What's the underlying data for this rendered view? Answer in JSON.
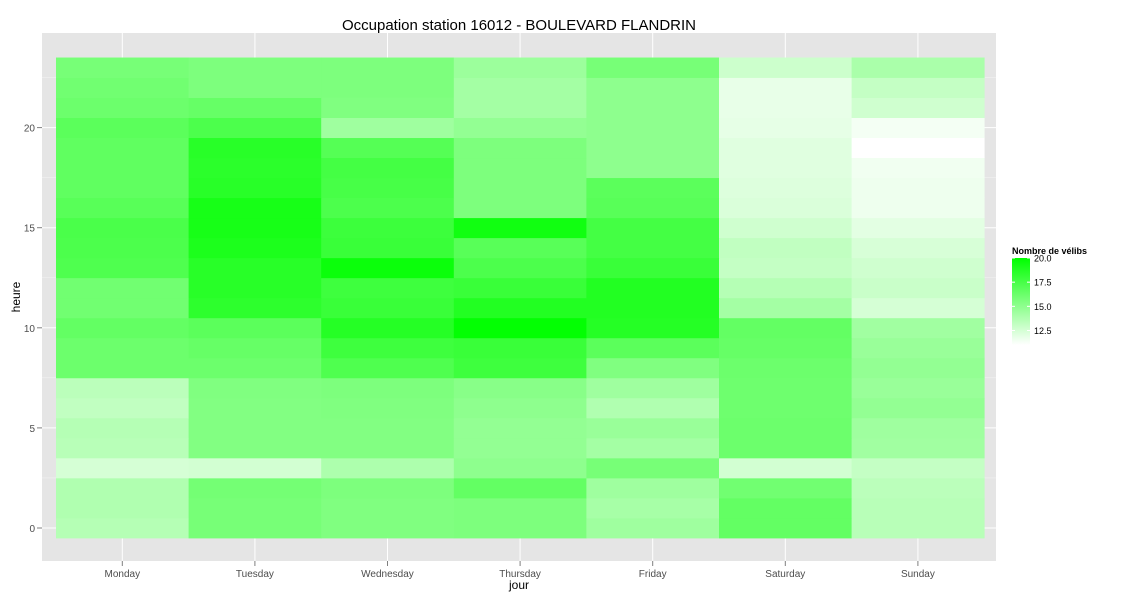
{
  "chart_data": {
    "type": "heatmap",
    "title": "Occupation station 16012 - BOULEVARD FLANDRIN",
    "xlabel": "jour",
    "ylabel": "heure",
    "categories": [
      "Monday",
      "Tuesday",
      "Wednesday",
      "Thursday",
      "Friday",
      "Saturday",
      "Sunday"
    ],
    "y": [
      0,
      1,
      2,
      3,
      4,
      5,
      6,
      7,
      8,
      9,
      10,
      11,
      12,
      13,
      14,
      15,
      16,
      17,
      18,
      19,
      20,
      21,
      22,
      23
    ],
    "y_ticks": [
      0,
      5,
      10,
      15,
      20
    ],
    "ylim": [
      -0.5,
      23.5
    ],
    "values": [
      [
        13.6,
        15.8,
        15.5,
        15.6,
        14.4,
        16.5,
        13.5
      ],
      [
        13.8,
        15.8,
        15.5,
        15.6,
        14.1,
        16.5,
        13.5
      ],
      [
        13.8,
        15.9,
        15.6,
        16.5,
        14.4,
        16.0,
        13.4
      ],
      [
        12.5,
        12.6,
        13.9,
        15.0,
        15.8,
        12.6,
        13.1
      ],
      [
        13.5,
        15.4,
        15.4,
        14.8,
        14.2,
        16.2,
        14.3
      ],
      [
        13.6,
        15.4,
        15.4,
        14.8,
        14.6,
        16.2,
        14.4
      ],
      [
        13.2,
        15.4,
        15.5,
        15.0,
        13.8,
        16.1,
        14.8
      ],
      [
        13.4,
        15.5,
        15.6,
        15.2,
        14.4,
        16.1,
        14.6
      ],
      [
        16.2,
        16.2,
        17.2,
        17.8,
        15.5,
        16.2,
        14.8
      ],
      [
        16.2,
        16.4,
        17.8,
        18.0,
        16.8,
        16.4,
        14.6
      ],
      [
        16.5,
        16.8,
        18.7,
        19.9,
        18.7,
        16.5,
        14.3
      ],
      [
        16.0,
        18.4,
        18.0,
        18.8,
        18.8,
        14.2,
        12.5
      ],
      [
        16.0,
        18.6,
        17.8,
        18.0,
        18.8,
        13.6,
        12.9
      ],
      [
        17.2,
        18.6,
        19.6,
        17.3,
        18.0,
        13.1,
        12.7
      ],
      [
        17.3,
        19.0,
        18.0,
        16.9,
        17.6,
        13.2,
        12.4
      ],
      [
        17.4,
        19.2,
        17.9,
        19.4,
        17.6,
        12.7,
        12.0
      ],
      [
        16.9,
        19.2,
        17.3,
        15.6,
        16.9,
        12.3,
        11.6
      ],
      [
        16.6,
        18.6,
        17.5,
        15.6,
        16.8,
        12.2,
        11.6
      ],
      [
        16.6,
        18.5,
        17.6,
        15.6,
        15.0,
        12.1,
        11.5
      ],
      [
        16.6,
        18.6,
        17.0,
        15.6,
        15.0,
        12.1,
        11.0
      ],
      [
        16.8,
        17.3,
        14.4,
        14.8,
        15.0,
        11.9,
        11.4
      ],
      [
        16.2,
        16.4,
        15.5,
        14.2,
        15.0,
        11.8,
        12.7
      ],
      [
        16.0,
        15.6,
        15.6,
        14.2,
        15.0,
        11.8,
        13.1
      ],
      [
        15.8,
        15.6,
        15.6,
        14.5,
        15.8,
        12.8,
        14.0
      ]
    ],
    "legend": {
      "title": "Nombre de vélibs",
      "ticks": [
        "20.0",
        "17.5",
        "15.0",
        "12.5"
      ],
      "placement": "right",
      "low_color": "#ffffff",
      "high_color": "#00ff00",
      "range": [
        11.0,
        20.0
      ]
    },
    "grid": true,
    "panel_color": "#e5e5e5",
    "grid_color": "#ffffff"
  }
}
